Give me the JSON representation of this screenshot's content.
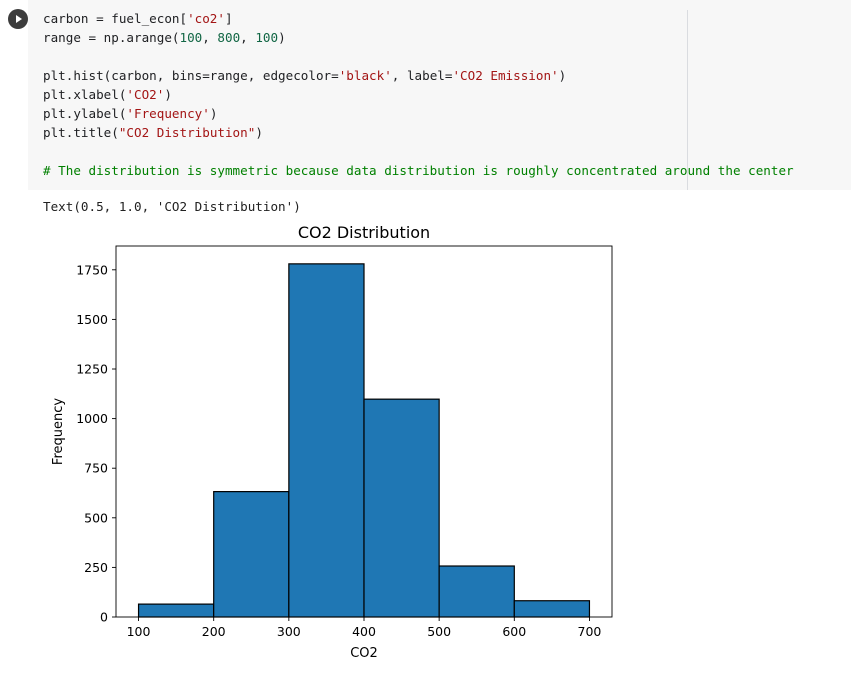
{
  "cell": {
    "code_lines": [
      [
        {
          "t": "carbon = fuel_econ["
        },
        {
          "t": "'co2'",
          "c": "str"
        },
        {
          "t": "]"
        }
      ],
      [
        {
          "t": "range = np.arange("
        },
        {
          "t": "100",
          "c": "num"
        },
        {
          "t": ", "
        },
        {
          "t": "800",
          "c": "num"
        },
        {
          "t": ", "
        },
        {
          "t": "100",
          "c": "num"
        },
        {
          "t": ")"
        }
      ],
      [],
      [
        {
          "t": "plt.hist(carbon, bins=range, edgecolor="
        },
        {
          "t": "'black'",
          "c": "str"
        },
        {
          "t": ", label="
        },
        {
          "t": "'CO2 Emission'",
          "c": "str"
        },
        {
          "t": ")"
        }
      ],
      [
        {
          "t": "plt.xlabel("
        },
        {
          "t": "'CO2'",
          "c": "str"
        },
        {
          "t": ")"
        }
      ],
      [
        {
          "t": "plt.ylabel("
        },
        {
          "t": "'Frequency'",
          "c": "str"
        },
        {
          "t": ")"
        }
      ],
      [
        {
          "t": "plt.title("
        },
        {
          "t": "\"CO2 Distribution\"",
          "c": "str"
        },
        {
          "t": ")"
        }
      ],
      [],
      [
        {
          "t": "# The distribution is symmetric because data distribution is roughly concentrated around the center",
          "c": "cmt"
        }
      ]
    ]
  },
  "output": {
    "text": "Text(0.5, 1.0, 'CO2 Distribution')"
  },
  "icons": {
    "run": "play-icon"
  },
  "colors": {
    "bar_fill": "#1f77b4",
    "bar_edge": "#000000",
    "code_bg": "#f7f7f7",
    "string": "#a31515",
    "number": "#116644",
    "comment": "#008000"
  },
  "chart_data": {
    "type": "bar",
    "title": "CO2 Distribution",
    "xlabel": "CO2",
    "ylabel": "Frequency",
    "bin_edges": [
      100,
      200,
      300,
      400,
      500,
      600,
      700
    ],
    "values": [
      65,
      632,
      1780,
      1098,
      257,
      82
    ],
    "xlim": [
      70,
      730
    ],
    "ylim": [
      0,
      1870
    ],
    "x_ticks": [
      100,
      200,
      300,
      400,
      500,
      600,
      700
    ],
    "y_ticks": [
      0,
      250,
      500,
      750,
      1000,
      1250,
      1500,
      1750
    ],
    "grid": false
  }
}
